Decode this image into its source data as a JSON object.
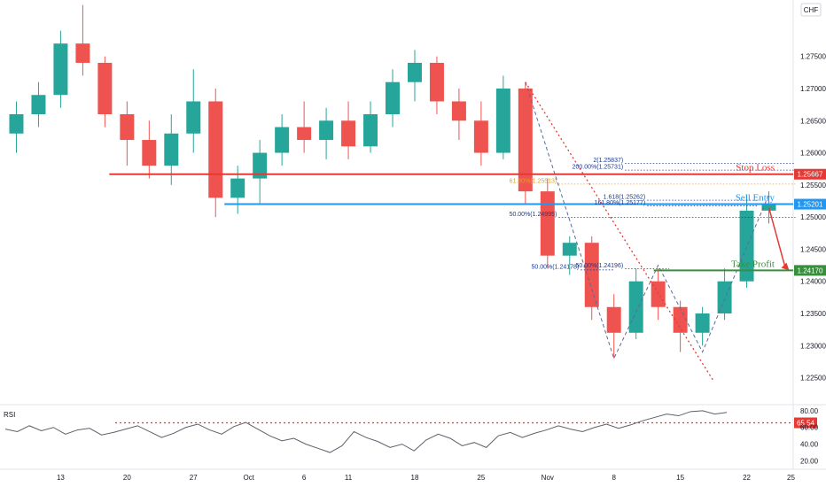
{
  "chart_data": [
    {
      "type": "candlestick",
      "title": "",
      "currency": "CHF",
      "y_ticks": [
        "1.27500",
        "1.27000",
        "1.26500",
        "1.26000",
        "1.25500",
        "1.25000",
        "1.24500",
        "1.24000",
        "1.23500",
        "1.23000",
        "1.22500"
      ],
      "y_tick_values": [
        1.275,
        1.27,
        1.265,
        1.26,
        1.255,
        1.25,
        1.245,
        1.24,
        1.235,
        1.23,
        1.225
      ],
      "ylim": [
        1.2215,
        1.2835
      ],
      "x_ticks": [
        "13",
        "20",
        "27",
        "Oct",
        "6",
        "11",
        "18",
        "25",
        "Nov",
        "8",
        "15",
        "22",
        "25"
      ],
      "x_tick_slots": [
        2,
        5,
        8,
        10.5,
        13,
        15,
        18,
        21,
        24,
        27,
        30,
        33,
        35
      ],
      "levels": [
        {
          "label": "Stop Loss",
          "value": 1.25667,
          "price_text": "1.25667",
          "color": "#e53935"
        },
        {
          "label": "Sell Entry",
          "value": 1.25201,
          "price_text": "1.25201",
          "color": "#2196f3"
        },
        {
          "label": "Take Profit",
          "value": 1.2417,
          "price_text": "1.24170",
          "color": "#388e3c"
        }
      ],
      "fib_labels": [
        {
          "text": "2(1.25837)",
          "value": 1.25837,
          "color": "#1e3a8a"
        },
        {
          "text": "200.00%(1.25731)",
          "value": 1.25731,
          "color": "#1e3a8a"
        },
        {
          "text": "61.80%(1.25513)",
          "value": 1.25513,
          "color": "#e6a117"
        },
        {
          "text": "1.618(1.25262)",
          "value": 1.25262,
          "color": "#1e3a8a"
        },
        {
          "text": "161.80%(1.25177)",
          "value": 1.25177,
          "color": "#1e3a8a"
        },
        {
          "text": "50.00%(1.24995)",
          "value": 1.24995,
          "color": "#1e3a8a"
        },
        {
          "text": "50.00%(1.24178)",
          "value": 1.24178,
          "color": "#1e3a8a"
        },
        {
          "text": "50.00%(1.24196)",
          "value": 1.24196,
          "color": "#1e3a8a"
        }
      ],
      "candles": [
        [
          1.263,
          1.268,
          1.26,
          1.266
        ],
        [
          1.266,
          1.271,
          1.264,
          1.269
        ],
        [
          1.269,
          1.279,
          1.267,
          1.277
        ],
        [
          1.277,
          1.283,
          1.272,
          1.274
        ],
        [
          1.274,
          1.275,
          1.264,
          1.266
        ],
        [
          1.266,
          1.268,
          1.258,
          1.262
        ],
        [
          1.262,
          1.265,
          1.256,
          1.258
        ],
        [
          1.258,
          1.266,
          1.255,
          1.263
        ],
        [
          1.263,
          1.273,
          1.26,
          1.268
        ],
        [
          1.268,
          1.27,
          1.25,
          1.253
        ],
        [
          1.253,
          1.258,
          1.2505,
          1.256
        ],
        [
          1.256,
          1.262,
          1.252,
          1.26
        ],
        [
          1.26,
          1.266,
          1.258,
          1.264
        ],
        [
          1.264,
          1.268,
          1.26,
          1.262
        ],
        [
          1.262,
          1.267,
          1.259,
          1.265
        ],
        [
          1.265,
          1.268,
          1.259,
          1.261
        ],
        [
          1.261,
          1.268,
          1.26,
          1.266
        ],
        [
          1.266,
          1.273,
          1.264,
          1.271
        ],
        [
          1.271,
          1.276,
          1.268,
          1.274
        ],
        [
          1.274,
          1.275,
          1.266,
          1.268
        ],
        [
          1.268,
          1.27,
          1.262,
          1.265
        ],
        [
          1.265,
          1.268,
          1.258,
          1.26
        ],
        [
          1.26,
          1.272,
          1.259,
          1.27
        ],
        [
          1.27,
          1.271,
          1.252,
          1.254
        ],
        [
          1.254,
          1.256,
          1.242,
          1.244
        ],
        [
          1.244,
          1.247,
          1.241,
          1.246
        ],
        [
          1.246,
          1.247,
          1.234,
          1.236
        ],
        [
          1.236,
          1.238,
          1.228,
          1.232
        ],
        [
          1.232,
          1.242,
          1.231,
          1.24
        ],
        [
          1.24,
          1.242,
          1.234,
          1.236
        ],
        [
          1.236,
          1.237,
          1.229,
          1.232
        ],
        [
          1.232,
          1.236,
          1.23,
          1.235
        ],
        [
          1.235,
          1.242,
          1.234,
          1.24
        ],
        [
          1.24,
          1.2535,
          1.239,
          1.251
        ],
        [
          1.251,
          1.254,
          1.249,
          1.252
        ]
      ]
    },
    {
      "type": "line",
      "title": "RSI",
      "y_ticks": [
        "80.00",
        "60.00",
        "40.00",
        "20.00"
      ],
      "y_tick_values": [
        80,
        60,
        40,
        20
      ],
      "ylim": [
        12,
        82
      ],
      "level_value": 65.54,
      "level_text": "65.54",
      "values": [
        58,
        55,
        62,
        56,
        60,
        52,
        57,
        59,
        51,
        54,
        58,
        62,
        55,
        48,
        53,
        60,
        64,
        57,
        52,
        61,
        66,
        58,
        50,
        44,
        47,
        40,
        35,
        30,
        38,
        55,
        48,
        43,
        36,
        40,
        32,
        45,
        52,
        47,
        38,
        42,
        36,
        50,
        54,
        48,
        53,
        57,
        62,
        58,
        55,
        60,
        64,
        59,
        63,
        68,
        72,
        76,
        74,
        79,
        80,
        76,
        78
      ]
    }
  ]
}
